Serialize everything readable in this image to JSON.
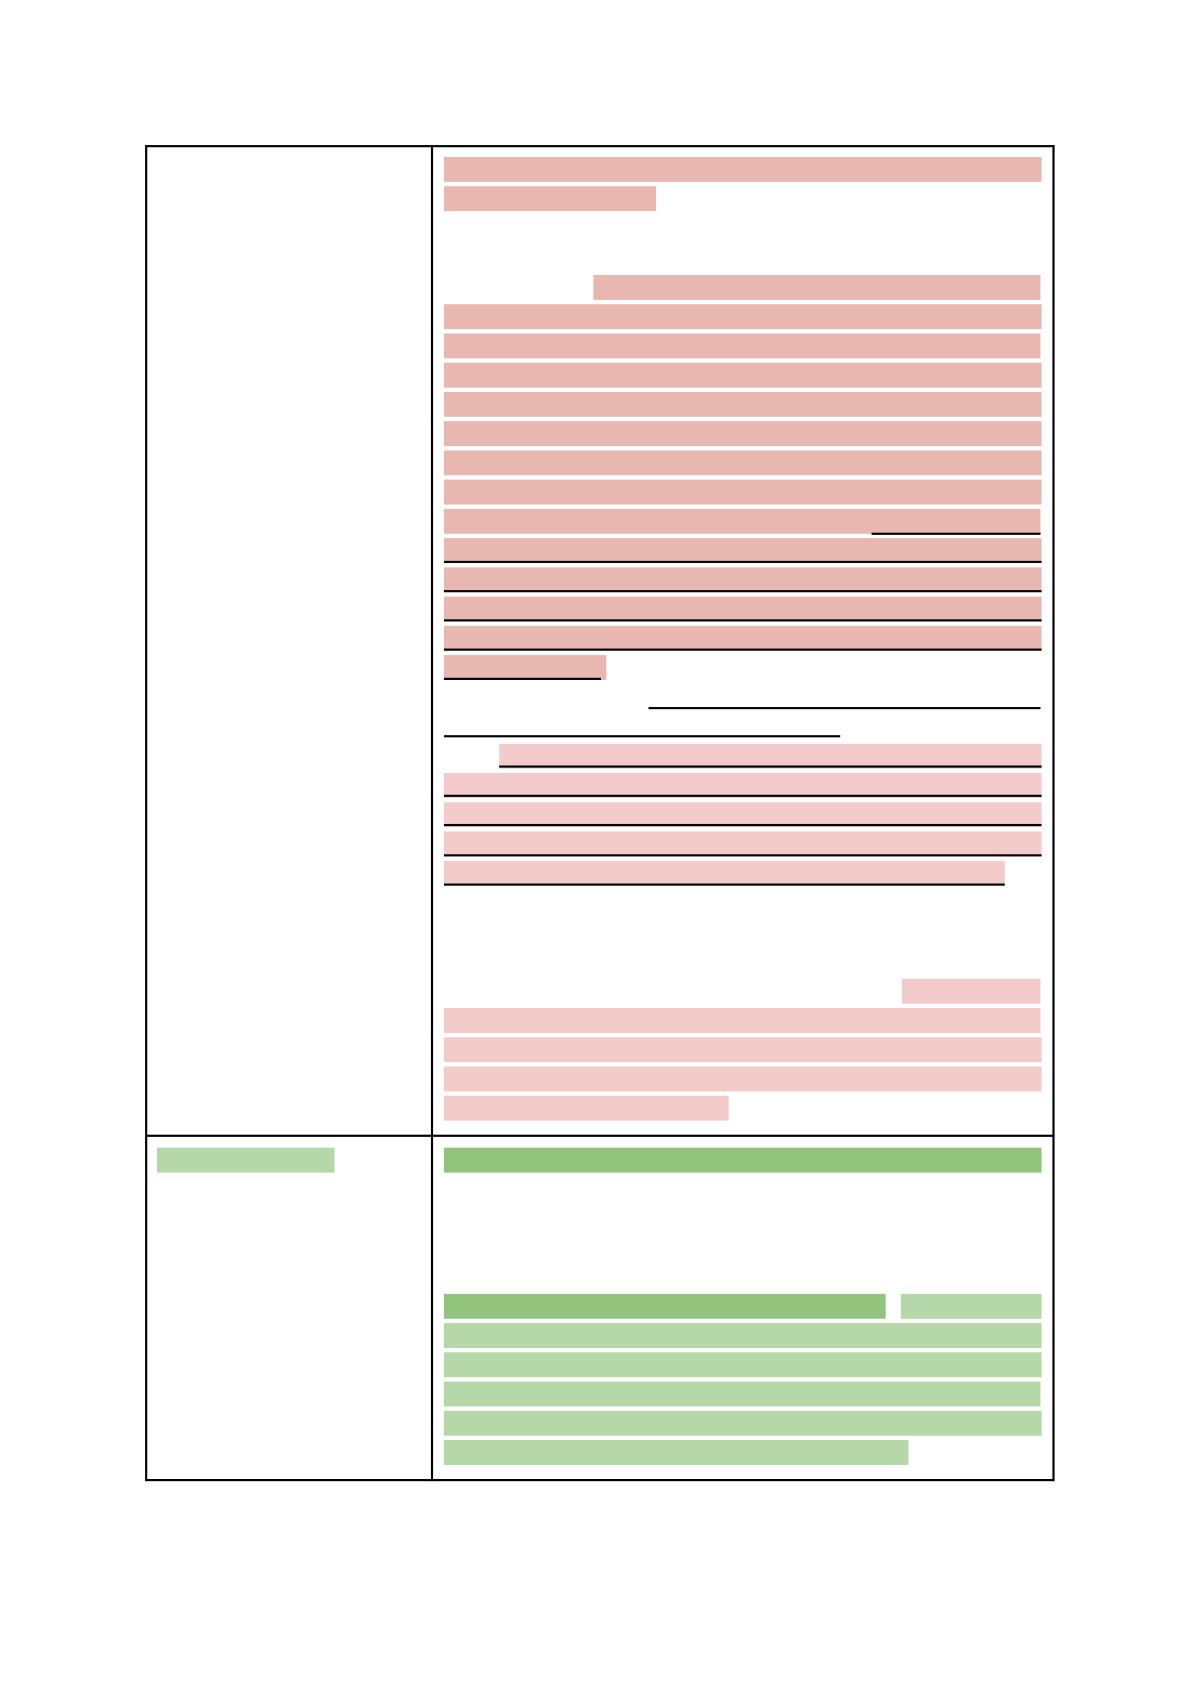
{
  "document": {
    "type": "redacted-table",
    "colors": {
      "redaction_dark_red": "#e8b8b0",
      "redaction_pink": "#f4cbcb",
      "highlight_dark_green": "#93c47d",
      "highlight_light_green": "#b6d7a8",
      "border": "#000000"
    }
  }
}
